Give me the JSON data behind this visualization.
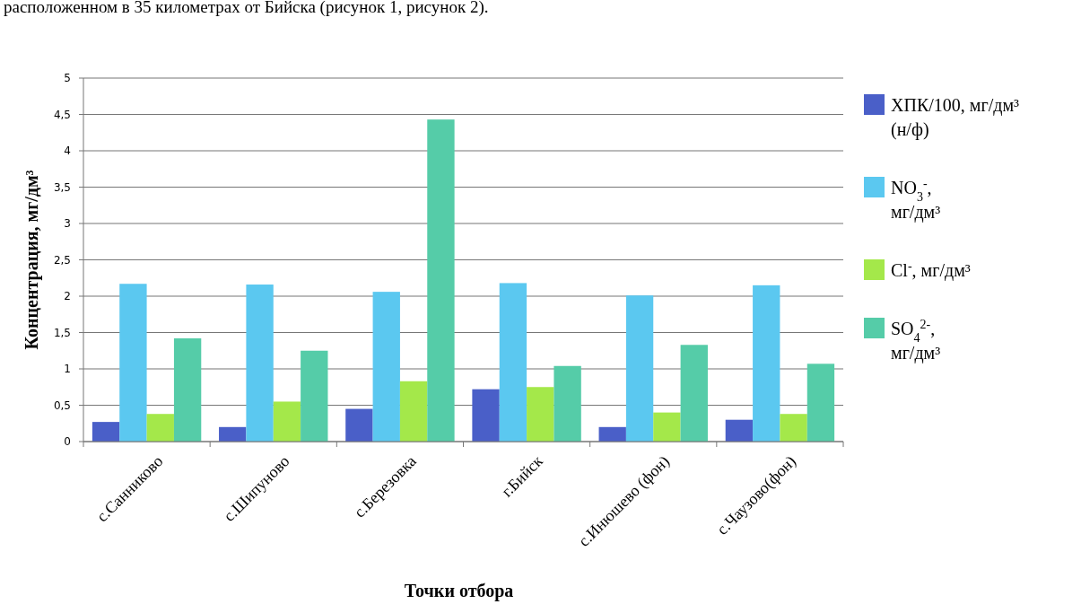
{
  "chart_data": {
    "type": "bar",
    "xlabel": "Точки отбора",
    "ylabel": "Концентрация,  мг/дм³",
    "annotations": [
      "расположенном в 35 километрах от Бийска (рисунок 1, рисунок 2)."
    ],
    "categories": [
      "с.Санниково",
      "с.Шипуново",
      "с.Березовка",
      "г.Бийск",
      "с.Инюшево (фон)",
      "с.Чаузово(фон)"
    ],
    "series": [
      {
        "name": "ХПК/100, мг/дм³ (н/ф)",
        "color": "#4a5fc8",
        "values": [
          0.27,
          0.2,
          0.45,
          0.72,
          0.2,
          0.3
        ]
      },
      {
        "name": "NO$_{3}$$^{-}$, мг/дм³",
        "color": "#5bc8f0",
        "values": [
          2.17,
          2.16,
          2.06,
          2.18,
          2.01,
          2.15
        ]
      },
      {
        "name": "Cl$^{-}$, мг/дм³",
        "color": "#a4e84a",
        "values": [
          0.38,
          0.55,
          0.83,
          0.75,
          0.4,
          0.38
        ]
      },
      {
        "name": "SO$_{4}$$^{2-}$, мг/дм³",
        "color": "#55cca8",
        "values": [
          1.42,
          1.25,
          4.43,
          1.04,
          1.33,
          1.07
        ]
      }
    ],
    "ylim": [
      0,
      5
    ],
    "yticks": [
      0,
      {
        "value": 0.5,
        "label": "0,5"
      },
      1,
      {
        "value": 1.5,
        "label": "1,5"
      },
      2,
      {
        "value": 2.5,
        "label": "2,5"
      },
      3,
      {
        "value": 3.5,
        "label": "3,5"
      },
      4,
      {
        "value": 4.5,
        "label": "4,5"
      },
      5
    ],
    "grid": "y",
    "legend": "right"
  }
}
